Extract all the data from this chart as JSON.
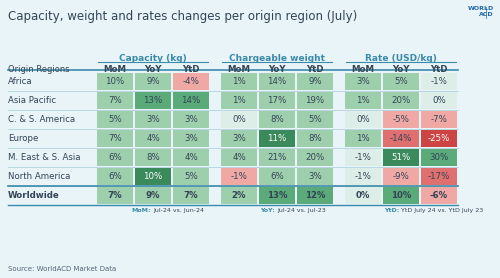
{
  "title": "Capacity, weight and rates changes per origin region (July)",
  "source": "Source: WorldACD Market Data",
  "col_groups": [
    "Capacity (kg)",
    "Chargeable weight",
    "Rate (USD/kg)"
  ],
  "col_headers": [
    "MoM",
    "YoY",
    "YtD"
  ],
  "regions": [
    "Africa",
    "Asia Pacific",
    "C. & S. America",
    "Europe",
    "M. East & S. Asia",
    "North America",
    "Worldwide"
  ],
  "data": {
    "Capacity (kg)": {
      "Africa": [
        "10%",
        "9%",
        "-4%"
      ],
      "Asia Pacific": [
        "7%",
        "13%",
        "14%"
      ],
      "C. & S. America": [
        "5%",
        "3%",
        "3%"
      ],
      "Europe": [
        "7%",
        "4%",
        "3%"
      ],
      "M. East & S. Asia": [
        "6%",
        "8%",
        "4%"
      ],
      "North America": [
        "6%",
        "10%",
        "5%"
      ],
      "Worldwide": [
        "7%",
        "9%",
        "7%"
      ]
    },
    "Chargeable weight": {
      "Africa": [
        "1%",
        "14%",
        "9%"
      ],
      "Asia Pacific": [
        "1%",
        "17%",
        "19%"
      ],
      "C. & S. America": [
        "0%",
        "8%",
        "5%"
      ],
      "Europe": [
        "3%",
        "11%",
        "8%"
      ],
      "M. East & S. Asia": [
        "4%",
        "21%",
        "20%"
      ],
      "North America": [
        "-1%",
        "6%",
        "3%"
      ],
      "Worldwide": [
        "2%",
        "13%",
        "12%"
      ]
    },
    "Rate (USD/kg)": {
      "Africa": [
        "3%",
        "5%",
        "-1%"
      ],
      "Asia Pacific": [
        "1%",
        "20%",
        "0%"
      ],
      "C. & S. America": [
        "0%",
        "-5%",
        "-7%"
      ],
      "Europe": [
        "1%",
        "-14%",
        "-25%"
      ],
      "M. East & S. Asia": [
        "-1%",
        "51%",
        "30%"
      ],
      "North America": [
        "-1%",
        "-9%",
        "-17%"
      ],
      "Worldwide": [
        "0%",
        "10%",
        "-6%"
      ]
    }
  },
  "colors": {
    "Capacity (kg)": {
      "Africa": [
        "light_green",
        "light_green",
        "light_red"
      ],
      "Asia Pacific": [
        "light_green",
        "mid_green",
        "mid_green"
      ],
      "C. & S. America": [
        "light_green",
        "light_green",
        "light_green"
      ],
      "Europe": [
        "light_green",
        "light_green",
        "light_green"
      ],
      "M. East & S. Asia": [
        "light_green",
        "light_green",
        "light_green"
      ],
      "North America": [
        "light_green",
        "dark_green",
        "light_green"
      ],
      "Worldwide": [
        "light_green",
        "light_green",
        "light_green"
      ]
    },
    "Chargeable weight": {
      "Africa": [
        "light_green",
        "light_green",
        "light_green"
      ],
      "Asia Pacific": [
        "light_green",
        "light_green",
        "light_green"
      ],
      "C. & S. America": [
        "none",
        "light_green",
        "light_green"
      ],
      "Europe": [
        "light_green",
        "dark_green",
        "light_green"
      ],
      "M. East & S. Asia": [
        "light_green",
        "light_green",
        "light_green"
      ],
      "North America": [
        "light_red",
        "light_green",
        "light_green"
      ],
      "Worldwide": [
        "light_green",
        "mid_green",
        "mid_green"
      ]
    },
    "Rate (USD/kg)": {
      "Africa": [
        "light_green",
        "light_green",
        "none"
      ],
      "Asia Pacific": [
        "light_green",
        "light_green",
        "none"
      ],
      "C. & S. America": [
        "none",
        "light_red",
        "light_red"
      ],
      "Europe": [
        "light_green",
        "mid_red",
        "dark_red"
      ],
      "M. East & S. Asia": [
        "none",
        "dark_green",
        "mid_green"
      ],
      "North America": [
        "none",
        "light_red",
        "mid_red"
      ],
      "Worldwide": [
        "none",
        "mid_green",
        "light_red"
      ]
    }
  },
  "color_map": {
    "dark_green": "#3a8a5c",
    "mid_green": "#5aaa7a",
    "light_green": "#9ecfad",
    "none": "#ddeee8",
    "light_red": "#f0a8a5",
    "mid_red": "#e07070",
    "dark_red": "#cc4444"
  },
  "footnotes": [
    [
      "MoM:",
      "Jul-24 vs. Jun-24"
    ],
    [
      "YoY:",
      "Jul-24 vs. Jul-23"
    ],
    [
      "YtD:",
      "YtD July 24 vs. YtD July 23"
    ]
  ],
  "bg_color": "#e8f4f8",
  "table_bg": "#ddeee8",
  "header_color": "#3a8aaa",
  "text_dark": "#334455",
  "worldacd_blue": "#2266aa",
  "line_color": "#8abccc"
}
